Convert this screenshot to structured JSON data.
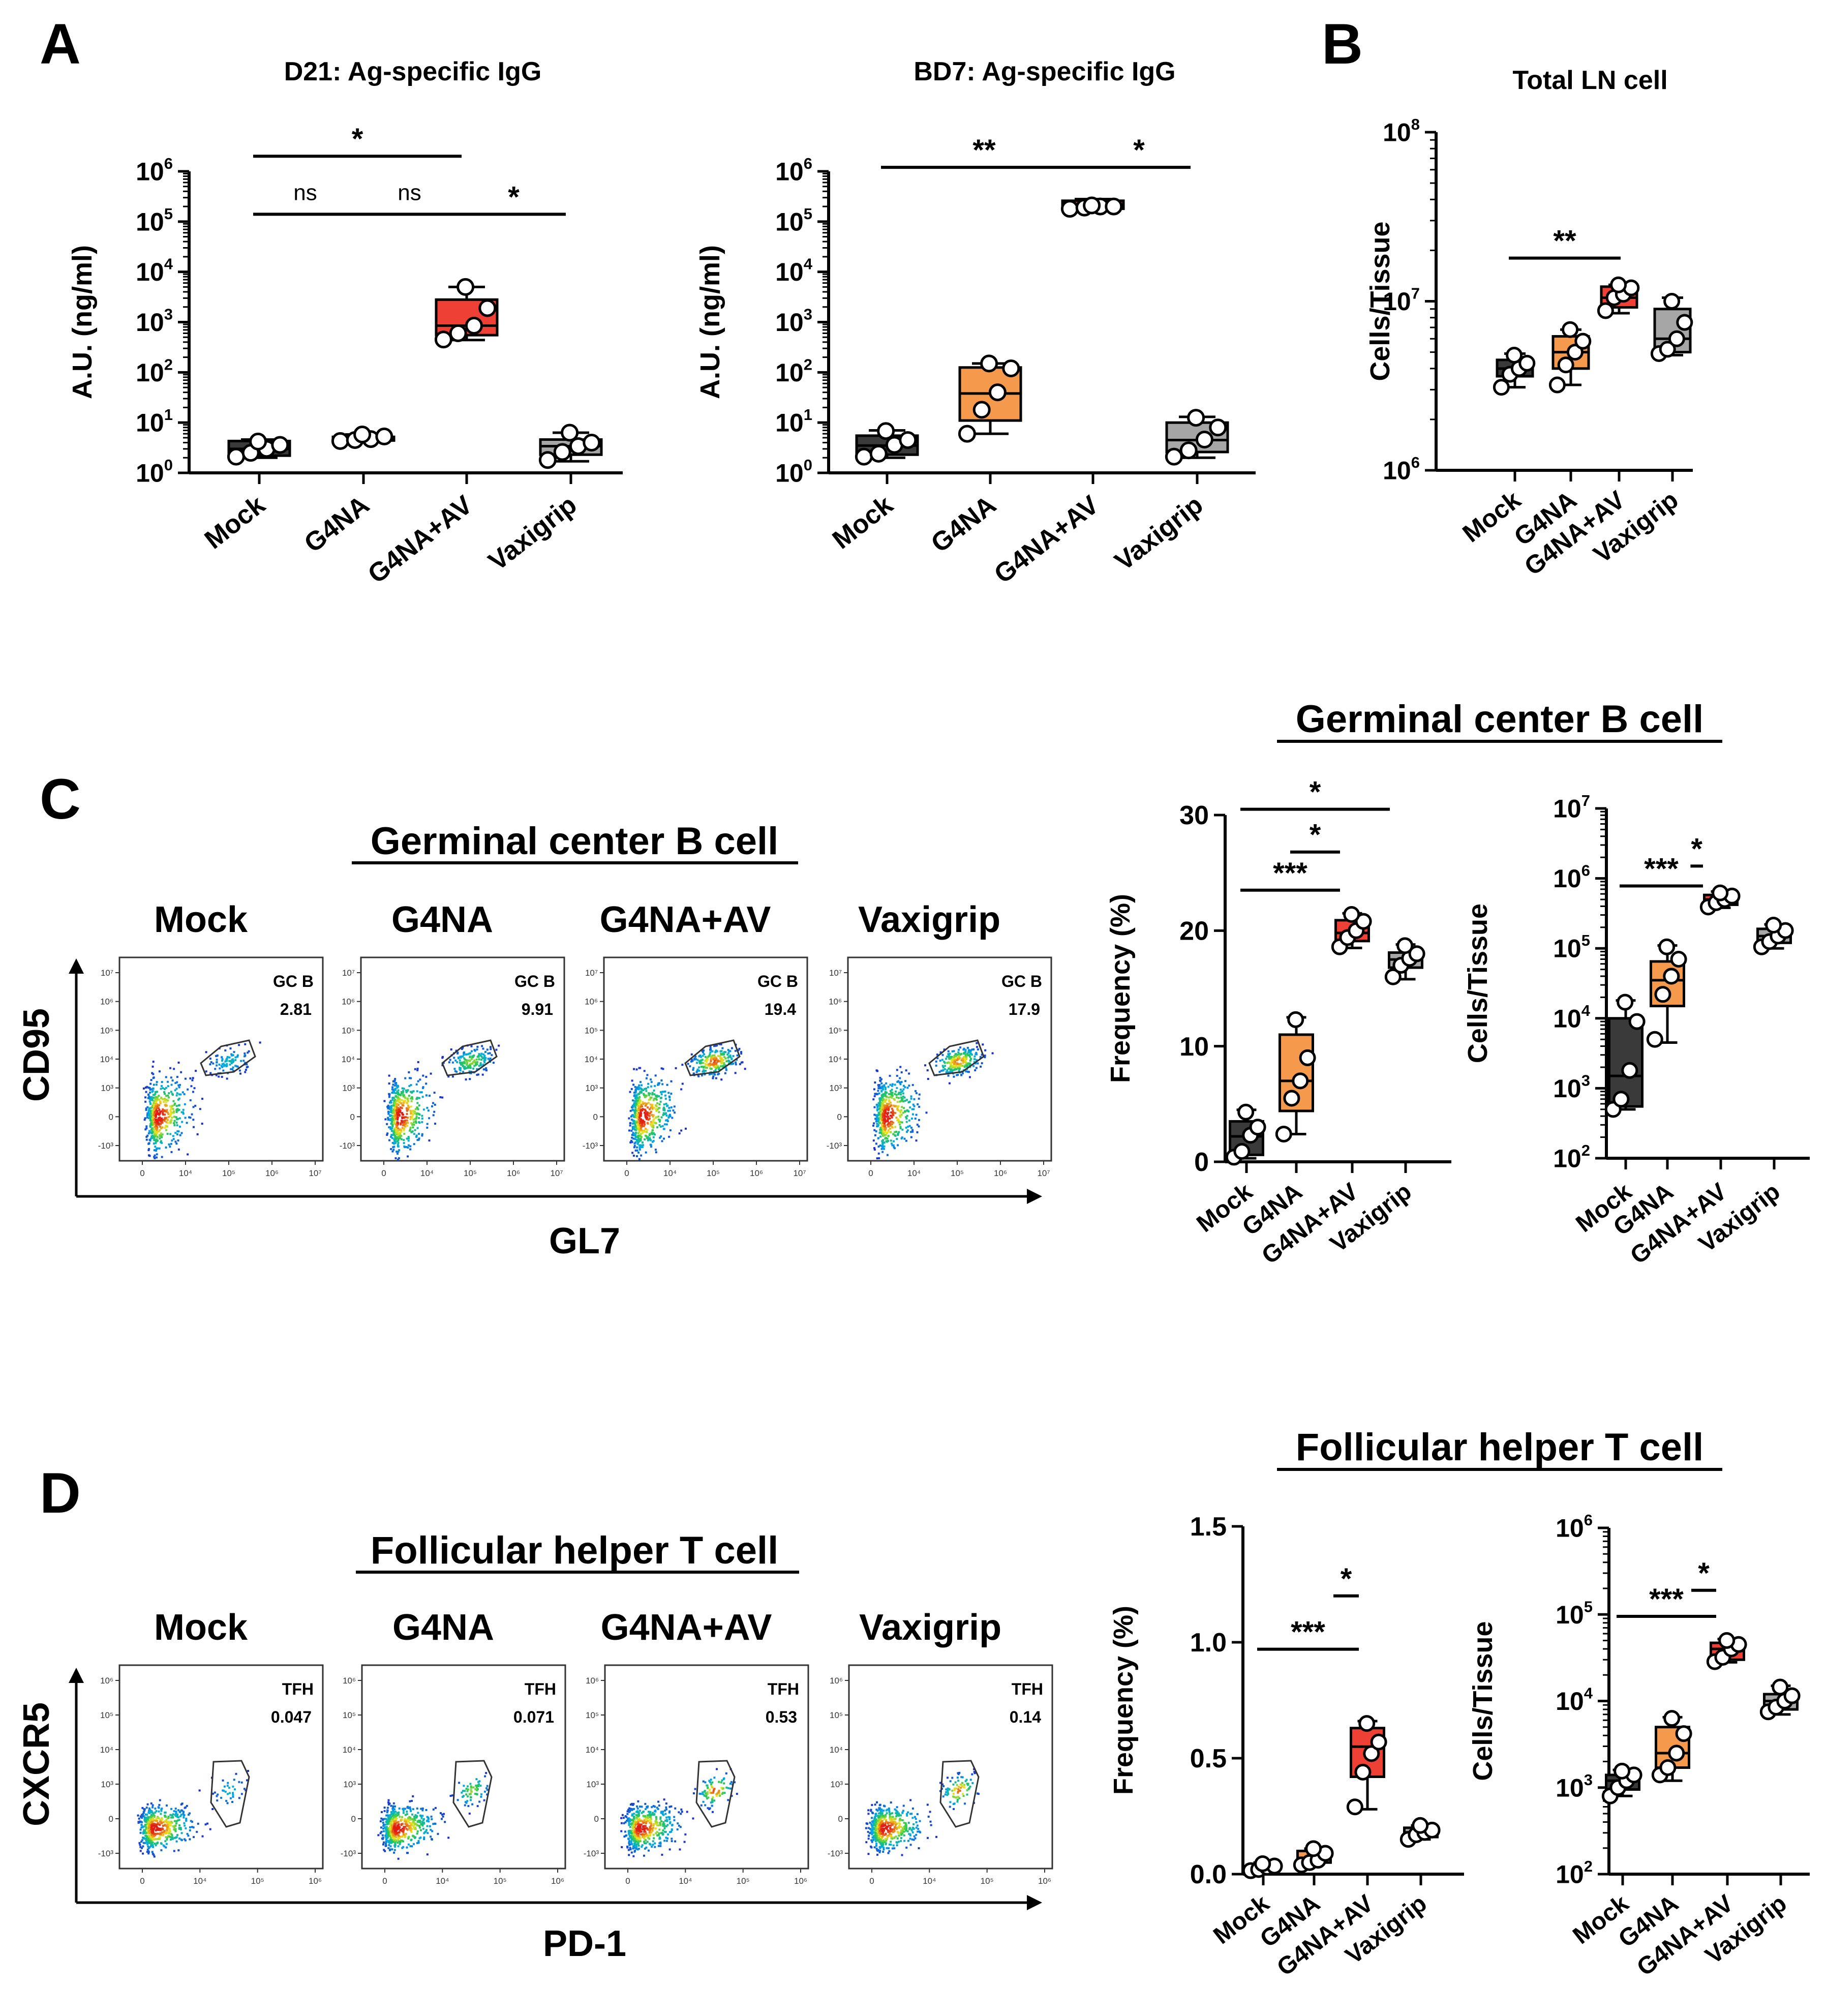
{
  "colors": {
    "mock": "#3a3a3a",
    "g4na": "#f59a4d",
    "g4na_av": "#ee4035",
    "vaxigrip": "#a6a6a6",
    "point": "#ffffff"
  },
  "panels": {
    "A": {
      "letter": "A"
    },
    "B": {
      "letter": "B"
    },
    "C": {
      "letter": "C",
      "section_title": "Germinal center B cell",
      "flow_title": "Germinal center B cell",
      "y_marker": "CD95",
      "x_marker": "GL7",
      "gate_label": "GC B",
      "samples": [
        {
          "name": "Mock",
          "value": "2.81"
        },
        {
          "name": "G4NA",
          "value": "9.91"
        },
        {
          "name": "G4NA+AV",
          "value": "19.4"
        },
        {
          "name": "Vaxigrip",
          "value": "17.9"
        }
      ]
    },
    "D": {
      "letter": "D",
      "section_title": "Follicular helper T cell",
      "flow_title": "Follicular helper T cell",
      "y_marker": "CXCR5",
      "x_marker": "PD-1",
      "gate_label": "TFH",
      "samples": [
        {
          "name": "Mock",
          "value": "0.047"
        },
        {
          "name": "G4NA",
          "value": "0.071"
        },
        {
          "name": "G4NA+AV",
          "value": "0.53"
        },
        {
          "name": "Vaxigrip",
          "value": "0.14"
        }
      ]
    }
  },
  "chart_data": [
    {
      "id": "A1",
      "type": "box",
      "title": "D21: Ag-specific IgG",
      "ylabel": "A.U. (ng/ml)",
      "yscale": "log",
      "ylim": [
        1,
        1000000
      ],
      "yticks": [
        "10^0",
        "10^1",
        "10^2",
        "10^3",
        "10^4",
        "10^5",
        "10^6"
      ],
      "categories": [
        "Mock",
        "G4NA",
        "G4NA+AV",
        "Vaxigrip"
      ],
      "groups": [
        {
          "name": "Mock",
          "box": [
            2.0,
            2.2,
            3.0,
            4.3,
            4.6
          ],
          "points": [
            2.1,
            2.5,
            3.0,
            3.6,
            4.2
          ]
        },
        {
          "name": "G4NA",
          "box": [
            4.3,
            4.4,
            4.7,
            5.2,
            5.8
          ],
          "points": [
            4.3,
            4.5,
            4.7,
            5.3,
            5.8
          ]
        },
        {
          "name": "G4NA+AV",
          "box": [
            440,
            550,
            850,
            2800,
            5000
          ],
          "points": [
            450,
            600,
            850,
            1900,
            5000
          ]
        },
        {
          "name": "Vaxigrip",
          "box": [
            1.7,
            2.3,
            3.4,
            4.6,
            6.3
          ],
          "points": [
            1.8,
            2.6,
            3.4,
            4.0,
            6.3
          ]
        }
      ],
      "sig": [
        {
          "label": "*",
          "from": 0,
          "to": 2,
          "y": 2000000
        },
        {
          "label": "ns",
          "from": 0,
          "to": 1,
          "y": 140000
        },
        {
          "label": "ns",
          "from": 1,
          "to": 2,
          "y": 140000
        },
        {
          "label": "*",
          "from": 2,
          "to": 3,
          "y": 140000
        }
      ]
    },
    {
      "id": "A2",
      "type": "box",
      "title": "BD7: Ag-specific IgG",
      "ylabel": "A.U. (ng/ml)",
      "yscale": "log",
      "ylim": [
        1,
        1000000
      ],
      "yticks": [
        "10^0",
        "10^1",
        "10^2",
        "10^3",
        "10^4",
        "10^5",
        "10^6"
      ],
      "categories": [
        "Mock",
        "G4NA",
        "G4NA+AV",
        "Vaxigrip"
      ],
      "groups": [
        {
          "name": "Mock",
          "box": [
            2.0,
            2.3,
            3.5,
            5.5,
            7.0
          ],
          "points": [
            2.1,
            2.4,
            3.6,
            4.5,
            6.8
          ]
        },
        {
          "name": "G4NA",
          "box": [
            6.0,
            11,
            38,
            125,
            150
          ],
          "points": [
            6.0,
            18,
            40,
            120,
            150
          ]
        },
        {
          "name": "G4NA+AV",
          "box": [
            170000,
            180000,
            200000,
            260000,
            280000
          ],
          "points": [
            180000,
            190000,
            200000,
            200000,
            210000
          ]
        },
        {
          "name": "Vaxigrip",
          "box": [
            2.0,
            2.6,
            4.5,
            10,
            13
          ],
          "points": [
            2.1,
            2.8,
            4.6,
            8.0,
            12.5
          ]
        }
      ],
      "sig": [
        {
          "label": "**",
          "from": 0,
          "to": 2,
          "y": 1200000
        },
        {
          "label": "*",
          "from": 2,
          "to": 3,
          "y": 1200000
        }
      ]
    },
    {
      "id": "B",
      "type": "box",
      "title": "Total LN cell",
      "ylabel": "Cells/Tissue",
      "yscale": "log",
      "ylim": [
        1000000,
        100000000
      ],
      "yticks": [
        "10^6",
        "10^7",
        "10^8"
      ],
      "categories": [
        "Mock",
        "G4NA",
        "G4NA+AV",
        "Vaxigrip"
      ],
      "groups": [
        {
          "name": "Mock",
          "box": [
            3100000,
            3600000,
            4000000,
            4500000,
            4900000
          ],
          "points": [
            3100000,
            3700000,
            4000000,
            4300000,
            4800000
          ]
        },
        {
          "name": "G4NA",
          "box": [
            3200000,
            4000000,
            5000000,
            6200000,
            6800000
          ],
          "points": [
            3200000,
            4200000,
            5000000,
            5800000,
            6800000
          ]
        },
        {
          "name": "G4NA+AV",
          "box": [
            8500000,
            9200000,
            10500000,
            12200000,
            12500000
          ],
          "points": [
            8800000,
            10500000,
            11000000,
            12000000,
            12500000
          ]
        },
        {
          "name": "Vaxigrip",
          "box": [
            4800000,
            5000000,
            6000000,
            9000000,
            10500000
          ],
          "points": [
            4900000,
            5200000,
            6000000,
            7500000,
            10000000
          ]
        }
      ],
      "sig": [
        {
          "label": "**",
          "from": 0,
          "to": 2,
          "y": 18000000
        }
      ]
    },
    {
      "id": "C1",
      "type": "box",
      "title": "",
      "ylabel": "Frequency (%)",
      "yscale": "linear",
      "ylim": [
        0,
        30
      ],
      "yticks": [
        "0",
        "10",
        "20",
        "30"
      ],
      "categories": [
        "Mock",
        "G4NA",
        "G4NA+AV",
        "Vaxigrip"
      ],
      "groups": [
        {
          "name": "Mock",
          "box": [
            0.3,
            0.6,
            2.2,
            3.5,
            4.5
          ],
          "points": [
            0.4,
            0.9,
            2.3,
            3.0,
            4.3
          ]
        },
        {
          "name": "G4NA",
          "box": [
            2.4,
            4.4,
            7.0,
            11.0,
            12.5
          ],
          "points": [
            2.4,
            5.5,
            7.0,
            9.0,
            12.3
          ]
        },
        {
          "name": "G4NA+AV",
          "box": [
            18.5,
            19.1,
            19.8,
            20.9,
            21.5
          ],
          "points": [
            18.6,
            19.4,
            20.0,
            20.8,
            21.4
          ]
        },
        {
          "name": "Vaxigrip",
          "box": [
            15.8,
            16.8,
            17.5,
            18.1,
            18.8
          ],
          "points": [
            16.0,
            17.0,
            17.6,
            18.0,
            18.7
          ]
        }
      ],
      "sig": [
        {
          "label": "*",
          "from": 0,
          "to": 3,
          "y": 30.5
        },
        {
          "label": "*",
          "from": 1,
          "to": 2,
          "y": 26.8
        },
        {
          "label": "***",
          "from": 0,
          "to": 2,
          "y": 23.5
        }
      ]
    },
    {
      "id": "C2",
      "type": "box",
      "title": "",
      "ylabel": "Cells/Tissue",
      "yscale": "log",
      "ylim": [
        100,
        10000000
      ],
      "yticks": [
        "10^2",
        "10^3",
        "10^4",
        "10^5",
        "10^6",
        "10^7"
      ],
      "categories": [
        "Mock",
        "G4NA",
        "G4NA+AV",
        "Vaxigrip"
      ],
      "groups": [
        {
          "name": "Mock",
          "box": [
            500,
            550,
            1500,
            10000,
            18000
          ],
          "points": [
            500,
            700,
            1800,
            9000,
            17000
          ]
        },
        {
          "name": "G4NA",
          "box": [
            4500,
            15000,
            35000,
            65000,
            110000
          ],
          "points": [
            5000,
            22000,
            40000,
            70000,
            105000
          ]
        },
        {
          "name": "G4NA+AV",
          "box": [
            380000,
            420000,
            500000,
            580000,
            650000
          ],
          "points": [
            390000,
            450000,
            500000,
            560000,
            620000
          ]
        },
        {
          "name": "Vaxigrip",
          "box": [
            100000,
            120000,
            150000,
            190000,
            220000
          ],
          "points": [
            105000,
            125000,
            150000,
            180000,
            215000
          ]
        }
      ],
      "sig": [
        {
          "label": "*",
          "from": 1.7,
          "to": 2,
          "y": 1500000
        },
        {
          "label": "***",
          "from": 0,
          "to": 2,
          "y": 780000
        }
      ]
    },
    {
      "id": "D1",
      "type": "box",
      "title": "",
      "ylabel": "Frequency (%)",
      "yscale": "linear",
      "ylim": [
        0,
        1.5
      ],
      "yticks": [
        "0.0",
        "0.5",
        "1.0",
        "1.5"
      ],
      "categories": [
        "Mock",
        "G4NA",
        "G4NA+AV",
        "Vaxigrip"
      ],
      "groups": [
        {
          "name": "Mock",
          "box": [
            0.01,
            0.02,
            0.03,
            0.04,
            0.05
          ],
          "points": [
            0.015,
            0.02,
            0.03,
            0.035,
            0.045
          ]
        },
        {
          "name": "G4NA",
          "box": [
            0.04,
            0.05,
            0.07,
            0.1,
            0.11
          ],
          "points": [
            0.04,
            0.05,
            0.06,
            0.09,
            0.11
          ]
        },
        {
          "name": "G4NA+AV",
          "box": [
            0.28,
            0.42,
            0.55,
            0.63,
            0.66
          ],
          "points": [
            0.29,
            0.44,
            0.52,
            0.57,
            0.65
          ]
        },
        {
          "name": "Vaxigrip",
          "box": [
            0.15,
            0.16,
            0.18,
            0.2,
            0.21
          ],
          "points": [
            0.15,
            0.17,
            0.18,
            0.19,
            0.21
          ]
        }
      ],
      "sig": [
        {
          "label": "*",
          "from": 1.5,
          "to": 2,
          "y": 1.2
        },
        {
          "label": "***",
          "from": 0,
          "to": 2,
          "y": 0.97
        }
      ]
    },
    {
      "id": "D2",
      "type": "box",
      "title": "",
      "ylabel": "Cells/Tissue",
      "yscale": "log",
      "ylim": [
        100,
        1000000
      ],
      "yticks": [
        "10^2",
        "10^3",
        "10^4",
        "10^5",
        "10^6"
      ],
      "categories": [
        "Mock",
        "G4NA",
        "G4NA+AV",
        "Vaxigrip"
      ],
      "groups": [
        {
          "name": "Mock",
          "box": [
            800,
            950,
            1200,
            1400,
            1600
          ],
          "points": [
            800,
            1000,
            1200,
            1400,
            1550
          ]
        },
        {
          "name": "G4NA",
          "box": [
            1200,
            1700,
            2500,
            5000,
            6500
          ],
          "points": [
            1400,
            1700,
            2500,
            4200,
            6300
          ]
        },
        {
          "name": "G4NA+AV",
          "box": [
            28000,
            30000,
            40000,
            47000,
            52000
          ],
          "points": [
            28500,
            32000,
            40000,
            45000,
            50000
          ]
        },
        {
          "name": "Vaxigrip",
          "box": [
            7000,
            8000,
            10000,
            12000,
            15000
          ],
          "points": [
            7500,
            8500,
            10000,
            11500,
            14500
          ]
        }
      ],
      "sig": [
        {
          "label": "*",
          "from": 1.5,
          "to": 2,
          "y": 190000
        },
        {
          "label": "***",
          "from": 0,
          "to": 2,
          "y": 95000
        }
      ]
    }
  ]
}
